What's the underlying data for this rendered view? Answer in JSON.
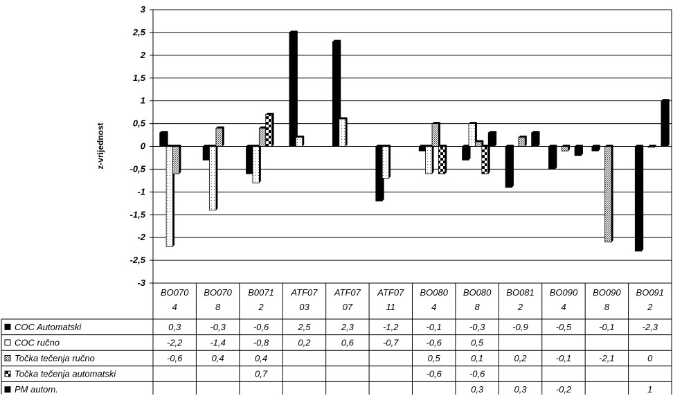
{
  "chart_data": {
    "type": "bar",
    "title": "",
    "xlabel": "",
    "ylabel": "z-vrijednost",
    "ylim": [
      -3,
      3
    ],
    "yticks": [
      3,
      2.5,
      2,
      1.5,
      1,
      0.5,
      0,
      -0.5,
      -1,
      -1.5,
      -2,
      -2.5,
      -3
    ],
    "ytick_labels": [
      "3",
      "2,5",
      "2",
      "1,5",
      "1",
      "0,5",
      "0",
      "-0,5",
      "-1",
      "-1,5",
      "-2",
      "-2,5",
      "-3"
    ],
    "grid": true,
    "legend": "data-table",
    "categories": [
      [
        "BO070",
        "4"
      ],
      [
        "BO070",
        "8"
      ],
      [
        "B0071",
        "2"
      ],
      [
        "ATF07",
        "03"
      ],
      [
        "ATF07",
        "07"
      ],
      [
        "ATF07",
        "11"
      ],
      [
        "BO080",
        "4"
      ],
      [
        "BO080",
        "8"
      ],
      [
        "BO081",
        "2"
      ],
      [
        "BO090",
        "4"
      ],
      [
        "BO090",
        "8"
      ],
      [
        "BO091",
        "2"
      ]
    ],
    "series": [
      {
        "name": "COC Automatski",
        "pattern": "solid-black",
        "values": [
          0.3,
          -0.3,
          -0.6,
          2.5,
          2.3,
          -1.2,
          -0.1,
          -0.3,
          -0.9,
          -0.5,
          -0.1,
          -2.3
        ],
        "labels": [
          "0,3",
          "-0,3",
          "-0,6",
          "2,5",
          "2,3",
          "-1,2",
          "-0,1",
          "-0,3",
          "-0,9",
          "-0,5",
          "-0,1",
          "-2,3"
        ]
      },
      {
        "name": "COC ručno",
        "pattern": "white-dotted",
        "values": [
          -2.2,
          -1.4,
          -0.8,
          0.2,
          0.6,
          -0.7,
          -0.6,
          0.5,
          null,
          null,
          null,
          null
        ],
        "labels": [
          "-2,2",
          "-1,4",
          "-0,8",
          "0,2",
          "0,6",
          "-0,7",
          "-0,6",
          "0,5",
          "",
          "",
          "",
          ""
        ]
      },
      {
        "name": "Točka tečenja ručno",
        "pattern": "grey-stipple",
        "values": [
          -0.6,
          0.4,
          0.4,
          null,
          null,
          null,
          0.5,
          0.1,
          0.2,
          -0.1,
          -2.1,
          0
        ],
        "labels": [
          "-0,6",
          "0,4",
          "0,4",
          "",
          "",
          "",
          "0,5",
          "0,1",
          "0,2",
          "-0,1",
          "-2,1",
          "0"
        ]
      },
      {
        "name": "Točka tečenja automatski",
        "pattern": "checker",
        "values": [
          null,
          null,
          0.7,
          null,
          null,
          null,
          -0.6,
          -0.6,
          null,
          null,
          null,
          null
        ],
        "labels": [
          "",
          "",
          "0,7",
          "",
          "",
          "",
          "-0,6",
          "-0,6",
          "",
          "",
          "",
          ""
        ]
      },
      {
        "name": "PM autom.",
        "pattern": "solid-black",
        "values": [
          null,
          null,
          null,
          null,
          null,
          null,
          null,
          0.3,
          0.3,
          -0.2,
          null,
          1
        ],
        "labels": [
          "",
          "",
          "",
          "",
          "",
          "",
          "",
          "0,3",
          "0,3",
          "-0,2",
          "",
          "1"
        ]
      }
    ]
  }
}
